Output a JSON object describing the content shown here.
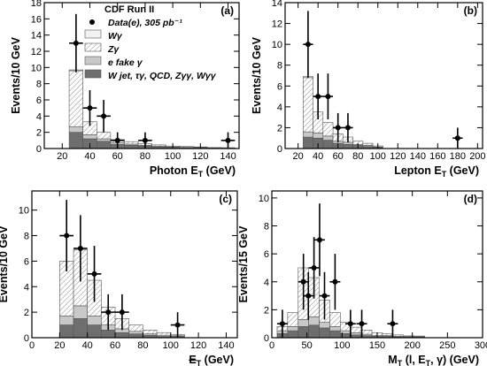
{
  "legend": {
    "title": "CDF Run II",
    "entries": [
      {
        "key": "data",
        "label": "Data(e), 305 pb⁻¹"
      },
      {
        "key": "wgamma",
        "label": "Wγ"
      },
      {
        "key": "zgamma",
        "label": "Zγ"
      },
      {
        "key": "efake",
        "label": "e fake γ"
      },
      {
        "key": "other",
        "label": "W jet, τγ, QCD, Zγγ, Wγγ"
      }
    ]
  },
  "colors": {
    "wgamma": "#f2f2f2",
    "zgamma": "#ffffff",
    "efake": "#c8c8c8",
    "other": "#6e6e6e",
    "data": "#000000"
  },
  "chart_data": [
    {
      "type": "bar",
      "panel_label": "(a)",
      "xlabel": "Photon E",
      "xlabel_sub": "T",
      "xlabel_unit": " (GeV)",
      "ylabel": "Events/10 GeV",
      "xlim": [
        7,
        148
      ],
      "ylim": [
        0,
        18
      ],
      "xticks": [
        20,
        40,
        60,
        80,
        100,
        120,
        140
      ],
      "yticks": [
        0,
        2,
        4,
        6,
        8,
        10,
        12,
        14,
        16,
        18
      ],
      "bin_edges": [
        25,
        35,
        45,
        55,
        65,
        75,
        85,
        95,
        105,
        115,
        125,
        135,
        145
      ],
      "stack": {
        "other": [
          2.0,
          1.2,
          0.9,
          0.5,
          0.4,
          0.3,
          0.2,
          0.15,
          0.1,
          0.1,
          0.05,
          0.05
        ],
        "efake": [
          0.7,
          0.5,
          0.3,
          0.2,
          0.15,
          0.1,
          0.1,
          0.05,
          0.05,
          0.05,
          0.02,
          0.02
        ],
        "zgamma": [
          6.9,
          1.6,
          0.8,
          0.4,
          0.3,
          0.2,
          0.15,
          0.1,
          0.1,
          0.05,
          0.05,
          0.03
        ],
        "wgamma": [
          0.1,
          0.0,
          0.0,
          0.0,
          0.0,
          0.0,
          0.0,
          0.0,
          0.0,
          0.0,
          0.0,
          0.0
        ]
      },
      "data_points": [
        {
          "x": 30,
          "y": 13,
          "yerr": [
            3.6,
            3.6
          ],
          "xerr": 5
        },
        {
          "x": 40,
          "y": 5,
          "yerr": [
            2.2,
            2.2
          ],
          "xerr": 5
        },
        {
          "x": 50,
          "y": 4,
          "yerr": [
            2.0,
            2.0
          ],
          "xerr": 5
        },
        {
          "x": 60,
          "y": 1,
          "yerr": [
            1.0,
            1.0
          ],
          "xerr": 5
        },
        {
          "x": 80,
          "y": 1,
          "yerr": [
            1.0,
            1.0
          ],
          "xerr": 5
        },
        {
          "x": 140,
          "y": 1,
          "yerr": [
            1.0,
            1.0
          ],
          "xerr": 5
        }
      ]
    },
    {
      "type": "bar",
      "panel_label": "(b)",
      "xlabel": "Lepton E",
      "xlabel_sub": "T",
      "xlabel_unit": " (GeV)",
      "ylabel": "Events/10 GeV",
      "xlim": [
        7,
        205
      ],
      "ylim": [
        0,
        14
      ],
      "xticks": [
        20,
        40,
        60,
        80,
        100,
        120,
        140,
        160,
        180,
        200
      ],
      "yticks": [
        0,
        2,
        4,
        6,
        8,
        10,
        12,
        14
      ],
      "bin_edges": [
        25,
        35,
        45,
        55,
        65,
        75,
        85,
        95,
        105
      ],
      "stack": {
        "other": [
          1.1,
          1.0,
          0.8,
          0.5,
          0.4,
          0.3,
          0.2,
          0.1
        ],
        "efake": [
          0.5,
          0.5,
          0.4,
          0.2,
          0.2,
          0.1,
          0.1,
          0.05
        ],
        "zgamma": [
          5.2,
          2.0,
          1.3,
          0.7,
          0.5,
          0.3,
          0.2,
          0.1
        ],
        "wgamma": [
          0.1,
          0.0,
          0.0,
          0.0,
          0.0,
          0.0,
          0.0,
          0.0
        ]
      },
      "data_points": [
        {
          "x": 30,
          "y": 10,
          "yerr": [
            3.2,
            3.2
          ],
          "xerr": 5
        },
        {
          "x": 40,
          "y": 5,
          "yerr": [
            2.2,
            2.2
          ],
          "xerr": 5
        },
        {
          "x": 50,
          "y": 5,
          "yerr": [
            2.2,
            2.2
          ],
          "xerr": 5
        },
        {
          "x": 60,
          "y": 2,
          "yerr": [
            1.4,
            1.4
          ],
          "xerr": 5
        },
        {
          "x": 70,
          "y": 2,
          "yerr": [
            1.4,
            1.4
          ],
          "xerr": 5
        },
        {
          "x": 180,
          "y": 1,
          "yerr": [
            1.0,
            1.0
          ],
          "xerr": 5
        }
      ]
    },
    {
      "type": "bar",
      "panel_label": "(c)",
      "xlabel": "E",
      "xlabel_slash": true,
      "xlabel_sub": "T",
      "xlabel_unit": " (GeV)",
      "ylabel": "Events/10 GeV",
      "xlim": [
        0,
        148
      ],
      "ylim": [
        0,
        11.5
      ],
      "xticks": [
        0,
        20,
        40,
        60,
        80,
        100,
        120,
        140
      ],
      "yticks": [
        0,
        2,
        4,
        6,
        8,
        10
      ],
      "bin_edges": [
        20,
        30,
        40,
        50,
        60,
        70,
        80,
        90,
        100,
        110
      ],
      "stack": {
        "other": [
          1.0,
          1.5,
          1.0,
          0.6,
          0.4,
          0.3,
          0.2,
          0.1,
          0.1
        ],
        "efake": [
          0.7,
          1.0,
          0.7,
          0.4,
          0.3,
          0.2,
          0.1,
          0.1,
          0.05
        ],
        "zgamma": [
          4.3,
          4.4,
          2.8,
          1.4,
          0.8,
          0.5,
          0.3,
          0.2,
          0.1
        ],
        "wgamma": [
          0.0,
          0.0,
          0.0,
          0.0,
          0.0,
          0.0,
          0.0,
          0.0,
          0.0
        ]
      },
      "data_points": [
        {
          "x": 25,
          "y": 8,
          "yerr": [
            2.8,
            2.8
          ],
          "xerr": 5
        },
        {
          "x": 35,
          "y": 7,
          "yerr": [
            2.6,
            2.6
          ],
          "xerr": 5
        },
        {
          "x": 45,
          "y": 5,
          "yerr": [
            2.2,
            2.2
          ],
          "xerr": 5
        },
        {
          "x": 55,
          "y": 2,
          "yerr": [
            1.4,
            1.4
          ],
          "xerr": 5
        },
        {
          "x": 65,
          "y": 2,
          "yerr": [
            1.4,
            1.4
          ],
          "xerr": 5
        },
        {
          "x": 105,
          "y": 1,
          "yerr": [
            1.0,
            1.0
          ],
          "xerr": 5
        }
      ]
    },
    {
      "type": "bar",
      "panel_label": "(d)",
      "xlabel": "M",
      "xlabel_sub": "T",
      "xlabel_unit": " (l, E",
      "xlabel_unit_sub": "T",
      "xlabel_tail": ", γ)  (GeV)",
      "ylabel": "Events/15 GeV",
      "xlim": [
        0,
        300
      ],
      "ylim": [
        0,
        10.5
      ],
      "xticks": [
        0,
        50,
        100,
        150,
        200,
        250,
        300
      ],
      "yticks": [
        0,
        2,
        4,
        6,
        8,
        10
      ],
      "bin_edges": [
        7.5,
        22.5,
        37.5,
        52.5,
        67.5,
        82.5,
        97.5,
        112.5,
        127.5,
        142.5,
        157.5,
        172.5,
        187.5,
        202.5,
        217.5
      ],
      "stack": {
        "other": [
          0.3,
          0.5,
          0.8,
          0.9,
          0.7,
          0.5,
          0.3,
          0.2,
          0.15,
          0.1,
          0.1,
          0.05,
          0.05,
          0.05
        ],
        "efake": [
          0.2,
          0.3,
          0.5,
          0.6,
          0.4,
          0.3,
          0.2,
          0.15,
          0.1,
          0.05,
          0.05,
          0.05,
          0.03,
          0.02
        ],
        "zgamma": [
          0.3,
          1.0,
          3.7,
          2.8,
          1.6,
          1.0,
          0.6,
          0.4,
          0.3,
          0.2,
          0.15,
          0.1,
          0.05,
          0.05
        ],
        "wgamma": [
          0.0,
          0.0,
          0.0,
          0.0,
          0.0,
          0.0,
          0.0,
          0.0,
          0.0,
          0.0,
          0.0,
          0.0,
          0.0,
          0.0
        ]
      },
      "data_points": [
        {
          "x": 15,
          "y": 1,
          "yerr": [
            1.0,
            1.0
          ],
          "xerr": 7.5
        },
        {
          "x": 45,
          "y": 4,
          "yerr": [
            2.0,
            2.0
          ],
          "xerr": 7.5
        },
        {
          "x": 52,
          "y": 3,
          "yerr": [
            1.7,
            1.7
          ],
          "xerr": 7.5
        },
        {
          "x": 60,
          "y": 5,
          "yerr": [
            2.2,
            2.2
          ],
          "xerr": 7.5
        },
        {
          "x": 68,
          "y": 7,
          "yerr": [
            2.6,
            2.6
          ],
          "xerr": 7.5
        },
        {
          "x": 75,
          "y": 3,
          "yerr": [
            1.7,
            1.7
          ],
          "xerr": 7.5
        },
        {
          "x": 90,
          "y": 4,
          "yerr": [
            2.0,
            2.0
          ],
          "xerr": 7.5
        },
        {
          "x": 112,
          "y": 1,
          "yerr": [
            1.0,
            1.0
          ],
          "xerr": 7.5
        },
        {
          "x": 128,
          "y": 1,
          "yerr": [
            1.0,
            1.0
          ],
          "xerr": 7.5
        },
        {
          "x": 172,
          "y": 1,
          "yerr": [
            1.0,
            1.0
          ],
          "xerr": 7.5
        }
      ]
    }
  ]
}
